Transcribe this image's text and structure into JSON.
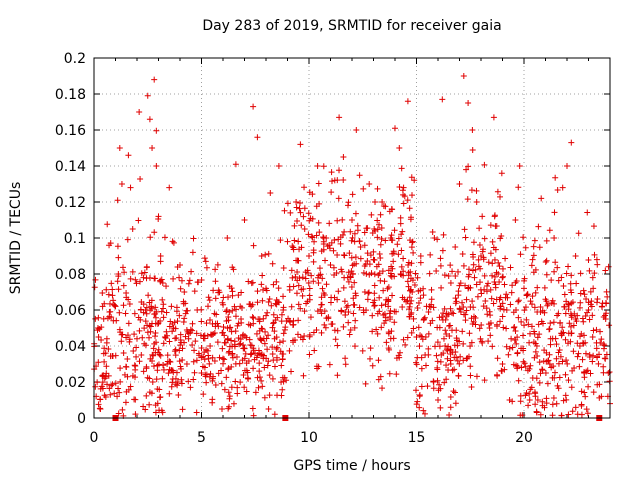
{
  "chart_data": {
    "type": "scatter",
    "title": "Day 283 of 2019, SRMTID for receiver gaia",
    "xlabel": "GPS time / hours",
    "ylabel": "SRMTID / TECUs",
    "xlim": [
      0,
      24
    ],
    "ylim": [
      0,
      0.2
    ],
    "xticks": [
      0,
      5,
      10,
      15,
      20
    ],
    "xtick_labels": [
      "0",
      "5",
      "10",
      "15",
      "20"
    ],
    "yticks": [
      0,
      0.02,
      0.04,
      0.06,
      0.08,
      0.1,
      0.12,
      0.14,
      0.16,
      0.18,
      0.2
    ],
    "ytick_labels": [
      "0",
      "0.02",
      "0.04",
      "0.06",
      "0.08",
      "0.1",
      "0.12",
      "0.14",
      "0.16",
      "0.18",
      "0.2"
    ],
    "grid": true,
    "marker": "plus",
    "color": "#e00000",
    "series": [
      {
        "name": "SRMTID",
        "points": [
          [
            0.1,
            0.012
          ],
          [
            0.2,
            0.031
          ],
          [
            0.3,
            0.005
          ],
          [
            0.4,
            0.062
          ],
          [
            0.5,
            0.022
          ],
          [
            0.6,
            0.044
          ],
          [
            0.7,
            0.096
          ],
          [
            0.8,
            0.018
          ],
          [
            0.9,
            0.054
          ],
          [
            1.0,
            0.062
          ],
          [
            1.1,
            0.121
          ],
          [
            1.2,
            0.15
          ],
          [
            1.3,
            0.13
          ],
          [
            1.4,
            0.081
          ],
          [
            1.5,
            0.067
          ],
          [
            1.6,
            0.146
          ],
          [
            1.7,
            0.128
          ],
          [
            1.8,
            0.105
          ],
          [
            1.9,
            0.058
          ],
          [
            2.0,
            0.044
          ],
          [
            2.1,
            0.17
          ],
          [
            2.2,
            0.035
          ],
          [
            2.3,
            0.078
          ],
          [
            2.4,
            0.06
          ],
          [
            2.5,
            0.179
          ],
          [
            2.6,
            0.166
          ],
          [
            2.7,
            0.15
          ],
          [
            2.8,
            0.188
          ],
          [
            2.9,
            0.14
          ],
          [
            3.0,
            0.112
          ],
          [
            3.1,
            0.09
          ],
          [
            3.2,
            0.075
          ],
          [
            3.3,
            0.045
          ],
          [
            3.4,
            0.03
          ],
          [
            3.5,
            0.128
          ],
          [
            3.6,
            0.062
          ],
          [
            3.7,
            0.05
          ],
          [
            3.8,
            0.038
          ],
          [
            3.9,
            0.02
          ],
          [
            4.0,
            0.085
          ],
          [
            4.2,
            0.07
          ],
          [
            4.4,
            0.044
          ],
          [
            4.6,
            0.092
          ],
          [
            4.8,
            0.06
          ],
          [
            5.0,
            0.025
          ],
          [
            5.2,
            0.087
          ],
          [
            5.4,
            0.04
          ],
          [
            5.6,
            0.058
          ],
          [
            5.8,
            0.071
          ],
          [
            6.0,
            0.033
          ],
          [
            6.2,
            0.1
          ],
          [
            6.4,
            0.048
          ],
          [
            6.6,
            0.141
          ],
          [
            6.8,
            0.062
          ],
          [
            7.0,
            0.11
          ],
          [
            7.2,
            0.052
          ],
          [
            7.4,
            0.173
          ],
          [
            7.6,
            0.156
          ],
          [
            7.8,
            0.09
          ],
          [
            8.0,
            0.072
          ],
          [
            8.2,
            0.125
          ],
          [
            8.4,
            0.044
          ],
          [
            8.6,
            0.14
          ],
          [
            8.8,
            0.06
          ],
          [
            9.0,
            0.098
          ],
          [
            9.2,
            0.082
          ],
          [
            9.4,
            0.12
          ],
          [
            9.6,
            0.152
          ],
          [
            9.8,
            0.105
          ],
          [
            10.0,
            0.09
          ],
          [
            10.2,
            0.076
          ],
          [
            10.4,
            0.14
          ],
          [
            10.6,
            0.063
          ],
          [
            10.8,
            0.1
          ],
          [
            11.0,
            0.085
          ],
          [
            11.2,
            0.132
          ],
          [
            11.4,
            0.167
          ],
          [
            11.6,
            0.145
          ],
          [
            11.8,
            0.078
          ],
          [
            12.0,
            0.11
          ],
          [
            12.2,
            0.16
          ],
          [
            12.4,
            0.095
          ],
          [
            12.6,
            0.07
          ],
          [
            12.8,
            0.13
          ],
          [
            13.0,
            0.088
          ],
          [
            13.2,
            0.058
          ],
          [
            13.4,
            0.12
          ],
          [
            13.6,
            0.042
          ],
          [
            13.8,
            0.1
          ],
          [
            14.0,
            0.161
          ],
          [
            14.2,
            0.15
          ],
          [
            14.4,
            0.128
          ],
          [
            14.6,
            0.176
          ],
          [
            14.8,
            0.07
          ],
          [
            15.0,
            0.045
          ],
          [
            15.2,
            0.09
          ],
          [
            15.4,
            0.035
          ],
          [
            15.6,
            0.062
          ],
          [
            15.8,
            0.02
          ],
          [
            16.0,
            0.01
          ],
          [
            16.2,
            0.177
          ],
          [
            16.4,
            0.058
          ],
          [
            16.6,
            0.075
          ],
          [
            16.8,
            0.095
          ],
          [
            17.0,
            0.13
          ],
          [
            17.2,
            0.19
          ],
          [
            17.4,
            0.175
          ],
          [
            17.6,
            0.16
          ],
          [
            17.8,
            0.12
          ],
          [
            18.0,
            0.09
          ],
          [
            18.2,
            0.065
          ],
          [
            18.4,
            0.05
          ],
          [
            18.6,
            0.167
          ],
          [
            18.8,
            0.08
          ],
          [
            19.0,
            0.03
          ],
          [
            19.2,
            0.06
          ],
          [
            19.4,
            0.044
          ],
          [
            19.6,
            0.11
          ],
          [
            19.8,
            0.14
          ],
          [
            20.0,
            0.072
          ],
          [
            20.2,
            0.052
          ],
          [
            20.4,
            0.088
          ],
          [
            20.6,
            0.04
          ],
          [
            20.8,
            0.122
          ],
          [
            21.0,
            0.066
          ],
          [
            21.2,
            0.03
          ],
          [
            21.4,
            0.1
          ],
          [
            21.6,
            0.058
          ],
          [
            21.8,
            0.128
          ],
          [
            22.0,
            0.14
          ],
          [
            22.2,
            0.153
          ],
          [
            22.4,
            0.09
          ],
          [
            22.6,
            0.04
          ],
          [
            22.8,
            0.025
          ],
          [
            23.0,
            0.06
          ],
          [
            23.2,
            0.078
          ],
          [
            23.4,
            0.034
          ],
          [
            23.6,
            0.012
          ],
          [
            23.8,
            0.055
          ],
          [
            24.0,
            0.008
          ]
        ]
      }
    ],
    "density_bands": [
      {
        "x": [
          0,
          3
        ],
        "mean": 0.04,
        "spread": 0.025
      },
      {
        "x": [
          3,
          9
        ],
        "mean": 0.042,
        "spread": 0.02
      },
      {
        "x": [
          9,
          15
        ],
        "mean": 0.075,
        "spread": 0.025
      },
      {
        "x": [
          15,
          17
        ],
        "mean": 0.045,
        "spread": 0.025
      },
      {
        "x": [
          17,
          19
        ],
        "mean": 0.07,
        "spread": 0.025
      },
      {
        "x": [
          19,
          24
        ],
        "mean": 0.045,
        "spread": 0.025
      }
    ],
    "baseline_markers": [
      1.0,
      8.9,
      23.5
    ]
  }
}
